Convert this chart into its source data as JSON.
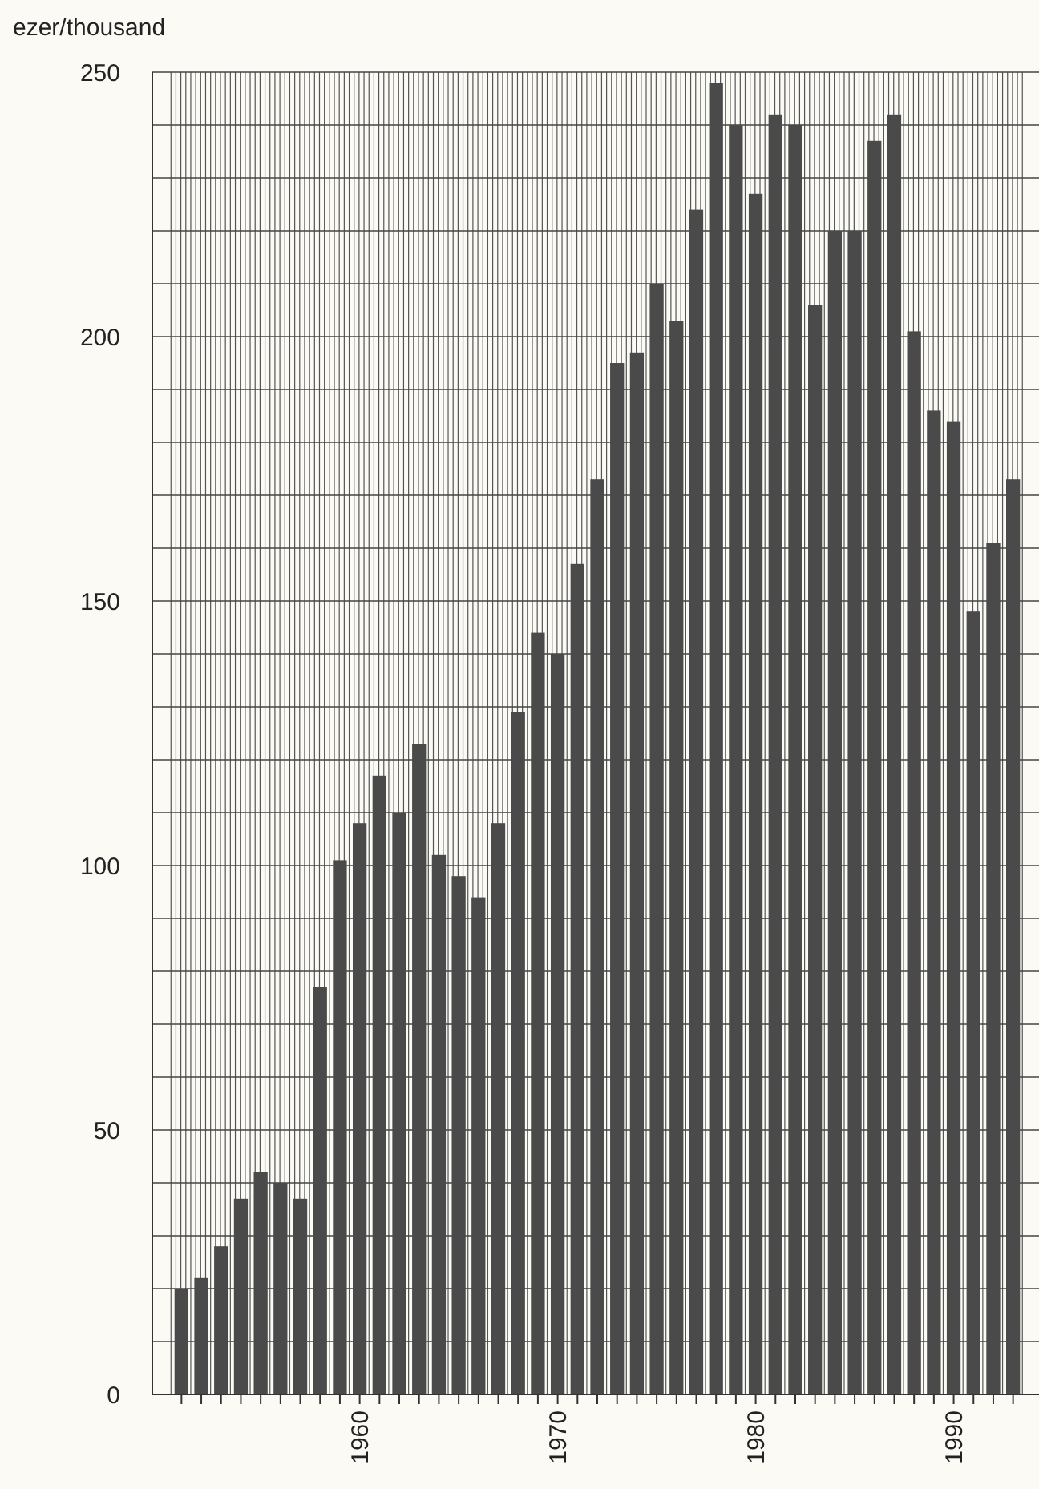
{
  "chart_data": {
    "type": "bar",
    "ylabel": "ezer/thousand",
    "categories": [
      null,
      null,
      null,
      null,
      null,
      null,
      null,
      null,
      null,
      "1960",
      null,
      null,
      null,
      null,
      null,
      null,
      null,
      null,
      null,
      "1970",
      null,
      null,
      null,
      null,
      null,
      null,
      null,
      null,
      null,
      "1980",
      null,
      null,
      null,
      null,
      null,
      null,
      null,
      null,
      null,
      "1990",
      null,
      null,
      null
    ],
    "values": [
      20,
      22,
      28,
      37,
      42,
      40,
      37,
      77,
      101,
      108,
      117,
      110,
      123,
      102,
      98,
      94,
      108,
      129,
      144,
      140,
      157,
      173,
      195,
      197,
      210,
      203,
      224,
      248,
      240,
      227,
      242,
      240,
      206,
      220,
      220,
      237,
      242,
      201,
      186,
      184,
      148,
      161,
      173
    ],
    "color": "#4a4a4a",
    "ylim": [
      0,
      250
    ],
    "yticks": [
      0,
      {
        "value": 10,
        "label": null
      },
      {
        "value": 20,
        "label": null
      },
      {
        "value": 30,
        "label": null
      },
      {
        "value": 40,
        "label": null
      },
      50,
      {
        "value": 60,
        "label": null
      },
      {
        "value": 70,
        "label": null
      },
      {
        "value": 80,
        "label": null
      },
      {
        "value": 90,
        "label": null
      },
      100,
      {
        "value": 110,
        "label": null
      },
      {
        "value": 120,
        "label": null
      },
      {
        "value": 130,
        "label": null
      },
      {
        "value": 140,
        "label": null
      },
      150,
      {
        "value": 160,
        "label": null
      },
      {
        "value": 170,
        "label": null
      },
      {
        "value": 180,
        "label": null
      },
      {
        "value": 190,
        "label": null
      },
      200,
      {
        "value": 210,
        "label": null
      },
      {
        "value": 220,
        "label": null
      },
      {
        "value": 230,
        "label": null
      },
      {
        "value": 240,
        "label": null
      },
      250
    ],
    "grid": true
  }
}
